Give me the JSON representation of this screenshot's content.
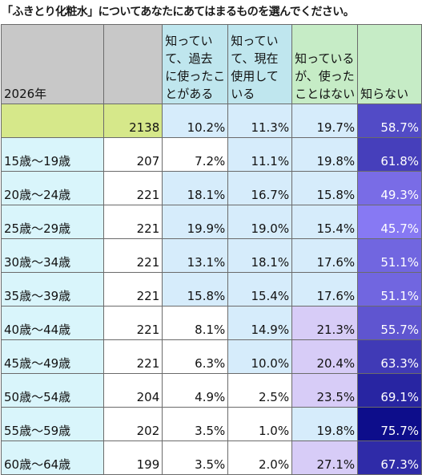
{
  "title": "「ふきとり化粧水」についてあなたにあてはまるものを選んでください。",
  "colors": {
    "label_bg": "#d9f5fb",
    "total_bg": "#d6e88a",
    "header_gray": "#c8c8c8",
    "header_blue": "#bfe6ee",
    "header_green": "#c6ecc6",
    "highlight_blue": "#d6ecfb",
    "highlight_purple": "#d7ccf7"
  },
  "chart_data": {
    "type": "table",
    "title": "「ふきとり化粧水」についてあなたにあてはまるものを選んでください。",
    "corner_label": "2026年",
    "columns": [
      {
        "lines": [
          "知ってい",
          "て、過去",
          "に使ったこ",
          "とがある"
        ]
      },
      {
        "lines": [
          "知ってい",
          "て、現在",
          "使用して",
          "いる"
        ]
      },
      {
        "lines": [
          "知っている",
          "が、使った",
          "ことはない"
        ]
      },
      {
        "lines": [
          "知らない"
        ]
      }
    ],
    "rows": [
      {
        "label": "",
        "n": "2138",
        "values": [
          "10.2%",
          "11.3%",
          "19.7%",
          "58.7%"
        ],
        "raw": [
          10.2,
          11.3,
          19.7,
          58.7
        ]
      },
      {
        "label": "15歳～19歳",
        "n": "207",
        "values": [
          "7.2%",
          "11.1%",
          "19.8%",
          "61.8%"
        ],
        "raw": [
          7.2,
          11.1,
          19.8,
          61.8
        ]
      },
      {
        "label": "20歳～24歳",
        "n": "221",
        "values": [
          "18.1%",
          "16.7%",
          "15.8%",
          "49.3%"
        ],
        "raw": [
          18.1,
          16.7,
          15.8,
          49.3
        ]
      },
      {
        "label": "25歳～29歳",
        "n": "221",
        "values": [
          "19.9%",
          "19.0%",
          "15.4%",
          "45.7%"
        ],
        "raw": [
          19.9,
          19.0,
          15.4,
          45.7
        ]
      },
      {
        "label": "30歳～34歳",
        "n": "221",
        "values": [
          "13.1%",
          "18.1%",
          "17.6%",
          "51.1%"
        ],
        "raw": [
          13.1,
          18.1,
          17.6,
          51.1
        ]
      },
      {
        "label": "35歳～39歳",
        "n": "221",
        "values": [
          "15.8%",
          "15.4%",
          "17.6%",
          "51.1%"
        ],
        "raw": [
          15.8,
          15.4,
          17.6,
          51.1
        ]
      },
      {
        "label": "40歳～44歳",
        "n": "221",
        "values": [
          "8.1%",
          "14.9%",
          "21.3%",
          "55.7%"
        ],
        "raw": [
          8.1,
          14.9,
          21.3,
          55.7
        ]
      },
      {
        "label": "45歳～49歳",
        "n": "221",
        "values": [
          "6.3%",
          "10.0%",
          "20.4%",
          "63.3%"
        ],
        "raw": [
          6.3,
          10.0,
          20.4,
          63.3
        ]
      },
      {
        "label": "50歳～54歳",
        "n": "204",
        "values": [
          "4.9%",
          "2.5%",
          "23.5%",
          "69.1%"
        ],
        "raw": [
          4.9,
          2.5,
          23.5,
          69.1
        ]
      },
      {
        "label": "55歳～59歳",
        "n": "202",
        "values": [
          "3.5%",
          "1.0%",
          "19.8%",
          "75.7%"
        ],
        "raw": [
          3.5,
          1.0,
          19.8,
          75.7
        ]
      },
      {
        "label": "60歳～64歳",
        "n": "199",
        "values": [
          "3.5%",
          "2.0%",
          "27.1%",
          "67.3%"
        ],
        "raw": [
          3.5,
          2.0,
          27.1,
          67.3
        ]
      }
    ]
  }
}
